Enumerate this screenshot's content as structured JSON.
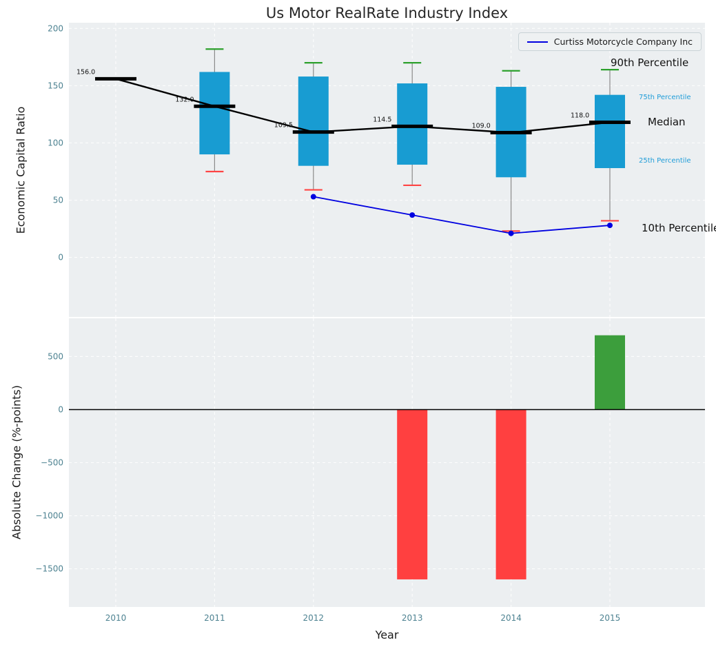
{
  "title": "Us Motor RealRate Industry Index",
  "xlabel": "Year",
  "top_panel": {
    "ylabel": "Economic Capital Ratio",
    "legend_label": "Curtiss Motorcycle Company Inc",
    "annotations": {
      "p90": "90th Percentile",
      "p75": "75th Percentile",
      "median": "Median",
      "p25": "25th Percentile",
      "p10": "10th Percentile"
    }
  },
  "bottom_panel": {
    "ylabel": "Absolute Change (%-points)"
  },
  "colors": {
    "box": "#189cd2",
    "median_line": "#000000",
    "p90_cap": "#2ca02c",
    "p10_cap": "#ff4444",
    "company_line": "#0000e0",
    "bar_negative": "#ff4040",
    "bar_positive": "#3c9e3c",
    "panel_bg": "#eceff1",
    "grid": "#ffffff",
    "tick_label": "#4d8291",
    "annotation_blue": "#1e9cd8",
    "whisker": "#8a8a8a"
  },
  "chart_data": [
    {
      "type": "boxplot",
      "title": "Us Motor RealRate Industry Index",
      "ylabel": "Economic Capital Ratio",
      "categories": [
        "2010",
        "2011",
        "2012",
        "2013",
        "2014",
        "2015"
      ],
      "yticks": [
        200,
        150,
        100,
        50,
        0
      ],
      "ytick_labels": [
        "200",
        "150",
        "100",
        "50",
        "0"
      ],
      "ylim": [
        -52,
        205
      ],
      "grid": true,
      "legend_position": "upper right",
      "boxes": [
        {
          "year": "2010",
          "median": 156.0,
          "median_label": "156.0",
          "q1": 156.0,
          "q3": 156.0,
          "p10": 156.0,
          "p90": 156.0
        },
        {
          "year": "2011",
          "median": 132.0,
          "median_label": "132.0",
          "q1": 90,
          "q3": 162,
          "p10": 75,
          "p90": 182
        },
        {
          "year": "2012",
          "median": 109.5,
          "median_label": "109.5",
          "q1": 80,
          "q3": 158,
          "p10": 59,
          "p90": 170
        },
        {
          "year": "2013",
          "median": 114.5,
          "median_label": "114.5",
          "q1": 81,
          "q3": 152,
          "p10": 63,
          "p90": 170
        },
        {
          "year": "2014",
          "median": 109.0,
          "median_label": "109.0",
          "q1": 70,
          "q3": 149,
          "p10": 23,
          "p90": 163
        },
        {
          "year": "2015",
          "median": 118.0,
          "median_label": "118.0",
          "q1": 78,
          "q3": 142,
          "p10": 32,
          "p90": 164
        }
      ],
      "median_line": [
        156.0,
        132.0,
        109.5,
        114.5,
        109.0,
        118.0
      ],
      "series": [
        {
          "name": "Curtiss Motorcycle Company Inc",
          "x": [
            "2012",
            "2013",
            "2014",
            "2015"
          ],
          "values": [
            53,
            37,
            21,
            28
          ]
        }
      ]
    },
    {
      "type": "bar",
      "xlabel": "Year",
      "ylabel": "Absolute Change (%-points)",
      "categories": [
        "2010",
        "2011",
        "2012",
        "2013",
        "2014",
        "2015"
      ],
      "values": [
        null,
        null,
        null,
        -1600,
        -1600,
        700
      ],
      "yticks": [
        500,
        0,
        -500,
        -1000,
        -1500
      ],
      "ytick_labels": [
        "500",
        "0",
        "−500",
        "−1000",
        "−1500"
      ],
      "ylim": [
        -1860,
        860
      ],
      "grid": true
    }
  ]
}
